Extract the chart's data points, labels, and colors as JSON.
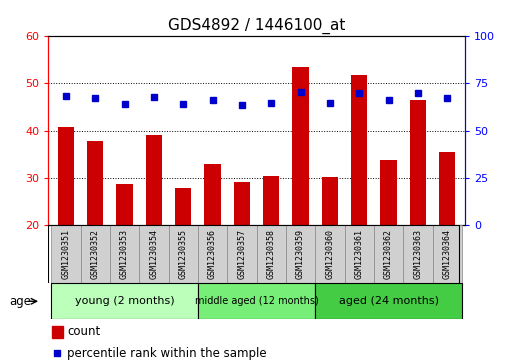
{
  "title": "GDS4892 / 1446100_at",
  "samples": [
    "GSM1230351",
    "GSM1230352",
    "GSM1230353",
    "GSM1230354",
    "GSM1230355",
    "GSM1230356",
    "GSM1230357",
    "GSM1230358",
    "GSM1230359",
    "GSM1230360",
    "GSM1230361",
    "GSM1230362",
    "GSM1230363",
    "GSM1230364"
  ],
  "count_values": [
    40.7,
    37.8,
    28.7,
    39.0,
    27.8,
    33.0,
    29.2,
    30.5,
    53.5,
    30.2,
    51.8,
    33.8,
    46.5,
    35.5
  ],
  "percentile_values": [
    68.5,
    67.5,
    64.0,
    68.0,
    64.0,
    66.0,
    63.5,
    64.5,
    70.5,
    64.5,
    70.0,
    66.5,
    70.0,
    67.5
  ],
  "ylim_left": [
    20,
    60
  ],
  "ylim_right": [
    0,
    100
  ],
  "yticks_left": [
    20,
    30,
    40,
    50,
    60
  ],
  "yticks_right": [
    0,
    25,
    50,
    75,
    100
  ],
  "bar_color": "#cc0000",
  "dot_color": "#0000cc",
  "groups": [
    {
      "label": "young (2 months)",
      "start": 0,
      "end": 5
    },
    {
      "label": "middle aged (12 months)",
      "start": 5,
      "end": 9
    },
    {
      "label": "aged (24 months)",
      "start": 9,
      "end": 14
    }
  ],
  "group_colors": [
    "#bbffbb",
    "#77ee77",
    "#44cc44"
  ],
  "age_label": "age",
  "legend_count_label": "count",
  "legend_pct_label": "percentile rank within the sample",
  "title_fontsize": 11,
  "tick_fontsize": 8,
  "sample_fontsize": 6,
  "group_fontsize_large": 8,
  "group_fontsize_small": 7
}
